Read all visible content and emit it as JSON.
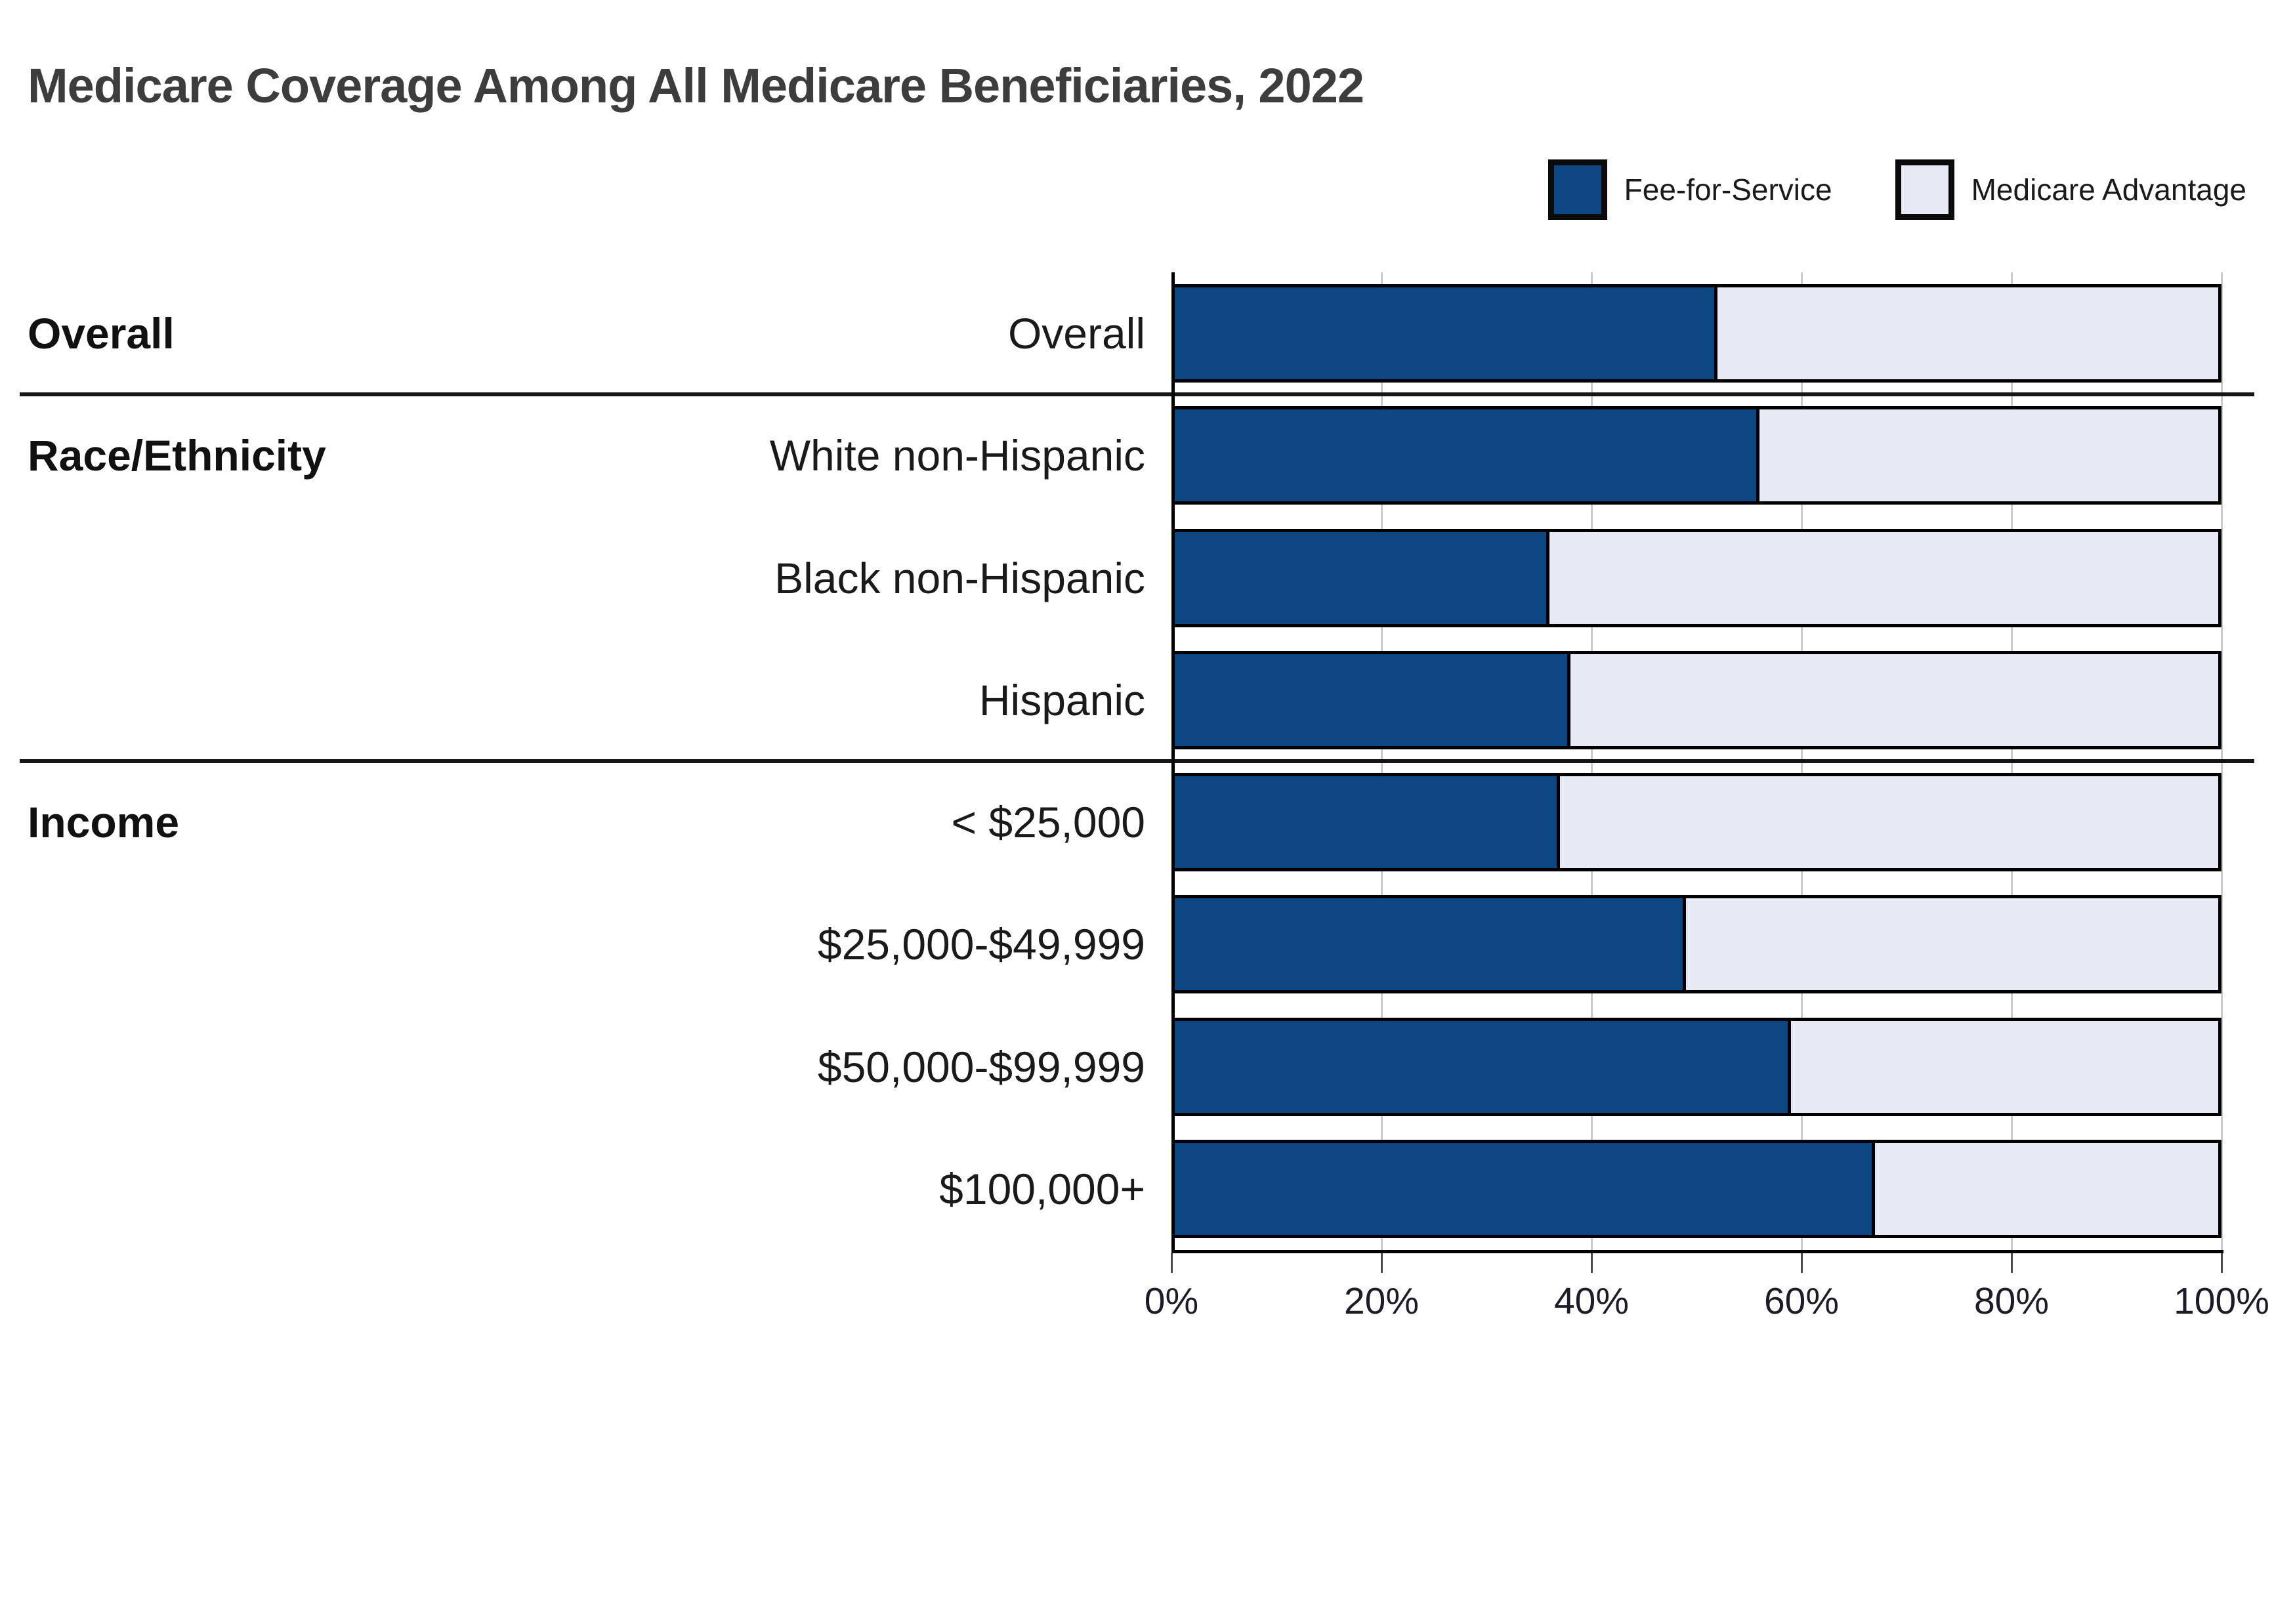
{
  "title": "Medicare Coverage Among All Medicare Beneficiaries, 2022",
  "legend": {
    "items": [
      {
        "label": "Fee-for-Service",
        "color": "#0d4683"
      },
      {
        "label": "Medicare Advantage",
        "color": "#e7eaf4"
      }
    ]
  },
  "colors": {
    "fee_for_service": "#0d4683",
    "medicare_advantage": "#e7eaf4",
    "bar_border": "#000000",
    "gridline": "#cbcbcb",
    "separator": "#161616",
    "title_text": "#3d3d3d",
    "label_text": "#1a1a1a"
  },
  "chart_data": {
    "type": "bar",
    "orientation": "horizontal",
    "stacked": true,
    "title": "Medicare Coverage Among All Medicare Beneficiaries, 2022",
    "xlabel": "",
    "ylabel": "",
    "unit": "%",
    "xlim": [
      0,
      100
    ],
    "x_tick_values": [
      0,
      20,
      40,
      60,
      80,
      100
    ],
    "x_ticks": [
      "0%",
      "20%",
      "40%",
      "60%",
      "80%",
      "100%"
    ],
    "grid": true,
    "legend_position": "top-right",
    "categories": [
      "Overall",
      "White non-Hispanic",
      "Black non-Hispanic",
      "Hispanic",
      "< $25,000",
      "$25,000-$49,999",
      "$50,000-$99,999",
      "$100,000+"
    ],
    "series": [
      {
        "name": "Fee-for-Service",
        "values": [
          52,
          56,
          36,
          38,
          37,
          49,
          59,
          67
        ]
      },
      {
        "name": "Medicare Advantage",
        "values": [
          48,
          44,
          64,
          62,
          63,
          51,
          41,
          33
        ]
      }
    ],
    "sections": [
      {
        "label": "Overall",
        "start_index": 0,
        "count": 1
      },
      {
        "label": "Race/Ethnicity",
        "start_index": 1,
        "count": 3
      },
      {
        "label": "Income",
        "start_index": 4,
        "count": 4
      }
    ]
  }
}
